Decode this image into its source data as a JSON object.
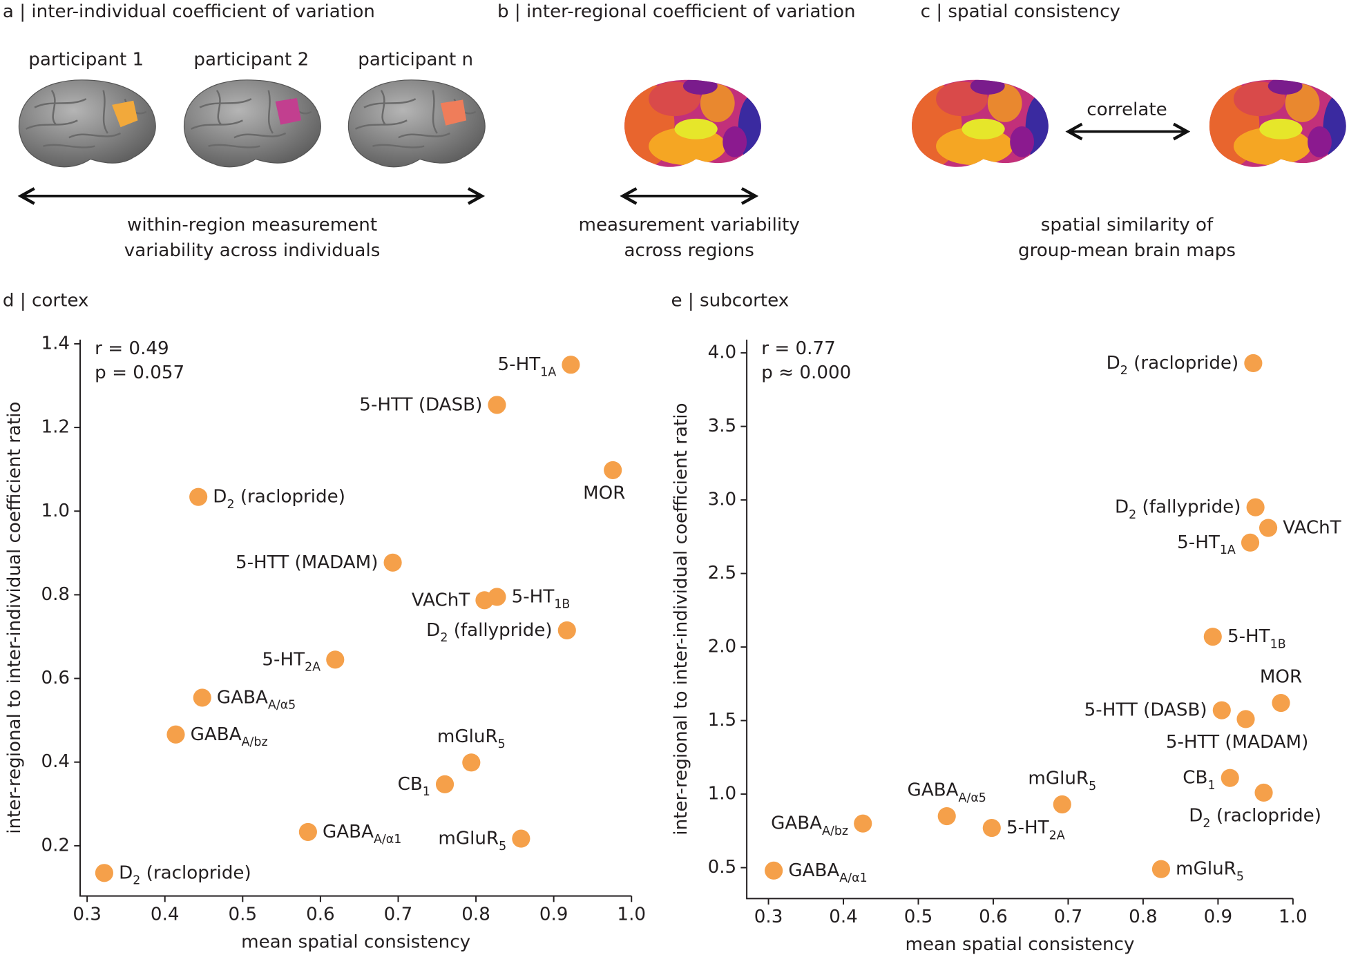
{
  "panels": [
    {
      "title": "a | inter-individual coefficient of variation",
      "participants": [
        "participant 1",
        "participant 2",
        "participant n"
      ],
      "caption": [
        "within-region measurement",
        "variability across individuals"
      ]
    },
    {
      "title": "b | inter-regional coefficient of variation",
      "caption": [
        "measurement variability",
        "across regions"
      ]
    },
    {
      "title": "c | spatial consistency",
      "arrow_label": "correlate",
      "caption": [
        "spatial similarity of",
        "group-mean brain maps"
      ]
    }
  ],
  "chart_data": [
    {
      "type": "scatter",
      "title": "d | cortex",
      "xlabel": "mean spatial consistency",
      "ylabel": "inter-regional to inter-individual coefficient ratio",
      "annotations": [
        "r = 0.49",
        "p = 0.057"
      ],
      "color": "#f5a04a",
      "xlim": [
        0.291,
        1.0
      ],
      "ylim": [
        0.08,
        1.41
      ],
      "xticks": [
        0.3,
        0.4,
        0.5,
        0.6,
        0.7,
        0.8,
        0.9,
        {
          "value": 1,
          "label": "1.0"
        }
      ],
      "yticks": [
        0.2,
        0.4,
        0.6,
        0.8,
        {
          "value": 1,
          "label": "1.0"
        },
        1.2,
        1.4
      ],
      "x": [
        0.922,
        0.827,
        0.976,
        0.443,
        0.693,
        0.827,
        0.811,
        0.917,
        0.619,
        0.448,
        0.414,
        0.794,
        0.76,
        0.584,
        0.858,
        0.322
      ],
      "values": [
        1.35,
        1.254,
        1.098,
        1.034,
        0.877,
        0.795,
        0.787,
        0.715,
        0.645,
        0.554,
        0.466,
        0.399,
        0.347,
        0.233,
        0.217,
        0.135
      ],
      "point_labels": [
        [
          "5-HT",
          "1A"
        ],
        [
          "5-HTT (DASB)"
        ],
        [
          "MOR"
        ],
        [
          "D",
          "2",
          " (raclopride)"
        ],
        [
          "5-HTT (MADAM)"
        ],
        [
          "5-HT",
          "1B"
        ],
        [
          "VAChT"
        ],
        [
          "D",
          "2",
          " (fallypride)"
        ],
        [
          "5-HT",
          "2A"
        ],
        [
          "GABA",
          "A/α5"
        ],
        [
          "GABA",
          "A/bz"
        ],
        [
          "mGluR",
          "5"
        ],
        [
          "CB",
          "1"
        ],
        [
          "GABA",
          "A/α1"
        ],
        [
          "mGluR",
          "5"
        ],
        [
          "D",
          "2",
          " (raclopride)"
        ]
      ]
    },
    {
      "type": "scatter",
      "title": "e | subcortex",
      "xlabel": "mean spatial consistency",
      "ylabel": "inter-regional to inter-individual coefficient ratio",
      "annotations": [
        "r = 0.77",
        "p ≈ 0.000"
      ],
      "color": "#f5a04a",
      "xlim": [
        0.271,
        1.0
      ],
      "ylim": [
        0.29,
        4.09
      ],
      "xticks": [
        0.3,
        0.4,
        0.5,
        0.6,
        0.7,
        0.8,
        0.9,
        {
          "value": 1,
          "label": "1.0"
        }
      ],
      "yticks": [
        0.5,
        {
          "value": 1,
          "label": "1.0"
        },
        1.5,
        {
          "value": 2,
          "label": "2.0"
        },
        2.5,
        {
          "value": 3,
          "label": "3.0"
        },
        3.5,
        {
          "value": 4,
          "label": "4.0"
        }
      ],
      "x": [
        0.947,
        0.95,
        0.967,
        0.943,
        0.893,
        0.984,
        0.905,
        0.937,
        0.916,
        0.961,
        0.538,
        0.692,
        0.598,
        0.426,
        0.824,
        0.307
      ],
      "values": [
        3.93,
        2.95,
        2.81,
        2.71,
        2.07,
        1.62,
        1.57,
        1.51,
        1.11,
        1.01,
        0.85,
        0.93,
        0.77,
        0.8,
        0.49,
        0.48
      ],
      "point_labels": [
        [
          "D",
          "2",
          " (raclopride)"
        ],
        [
          "D",
          "2",
          " (fallypride)"
        ],
        [
          "VAChT"
        ],
        [
          "5-HT",
          "1A"
        ],
        [
          "5-HT",
          "1B"
        ],
        [
          "MOR"
        ],
        [
          "5-HTT (DASB)"
        ],
        [
          "5-HTT (MADAM)"
        ],
        [
          "CB",
          "1"
        ],
        [
          "D",
          "2",
          " (raclopride)"
        ],
        [
          "GABA",
          "A/α5"
        ],
        [
          "mGluR",
          "5"
        ],
        [
          "5-HT",
          "2A"
        ],
        [
          "GABA",
          "A/bz"
        ],
        [
          "mGluR",
          "5"
        ],
        [
          "GABA",
          "A/α1"
        ]
      ]
    }
  ]
}
